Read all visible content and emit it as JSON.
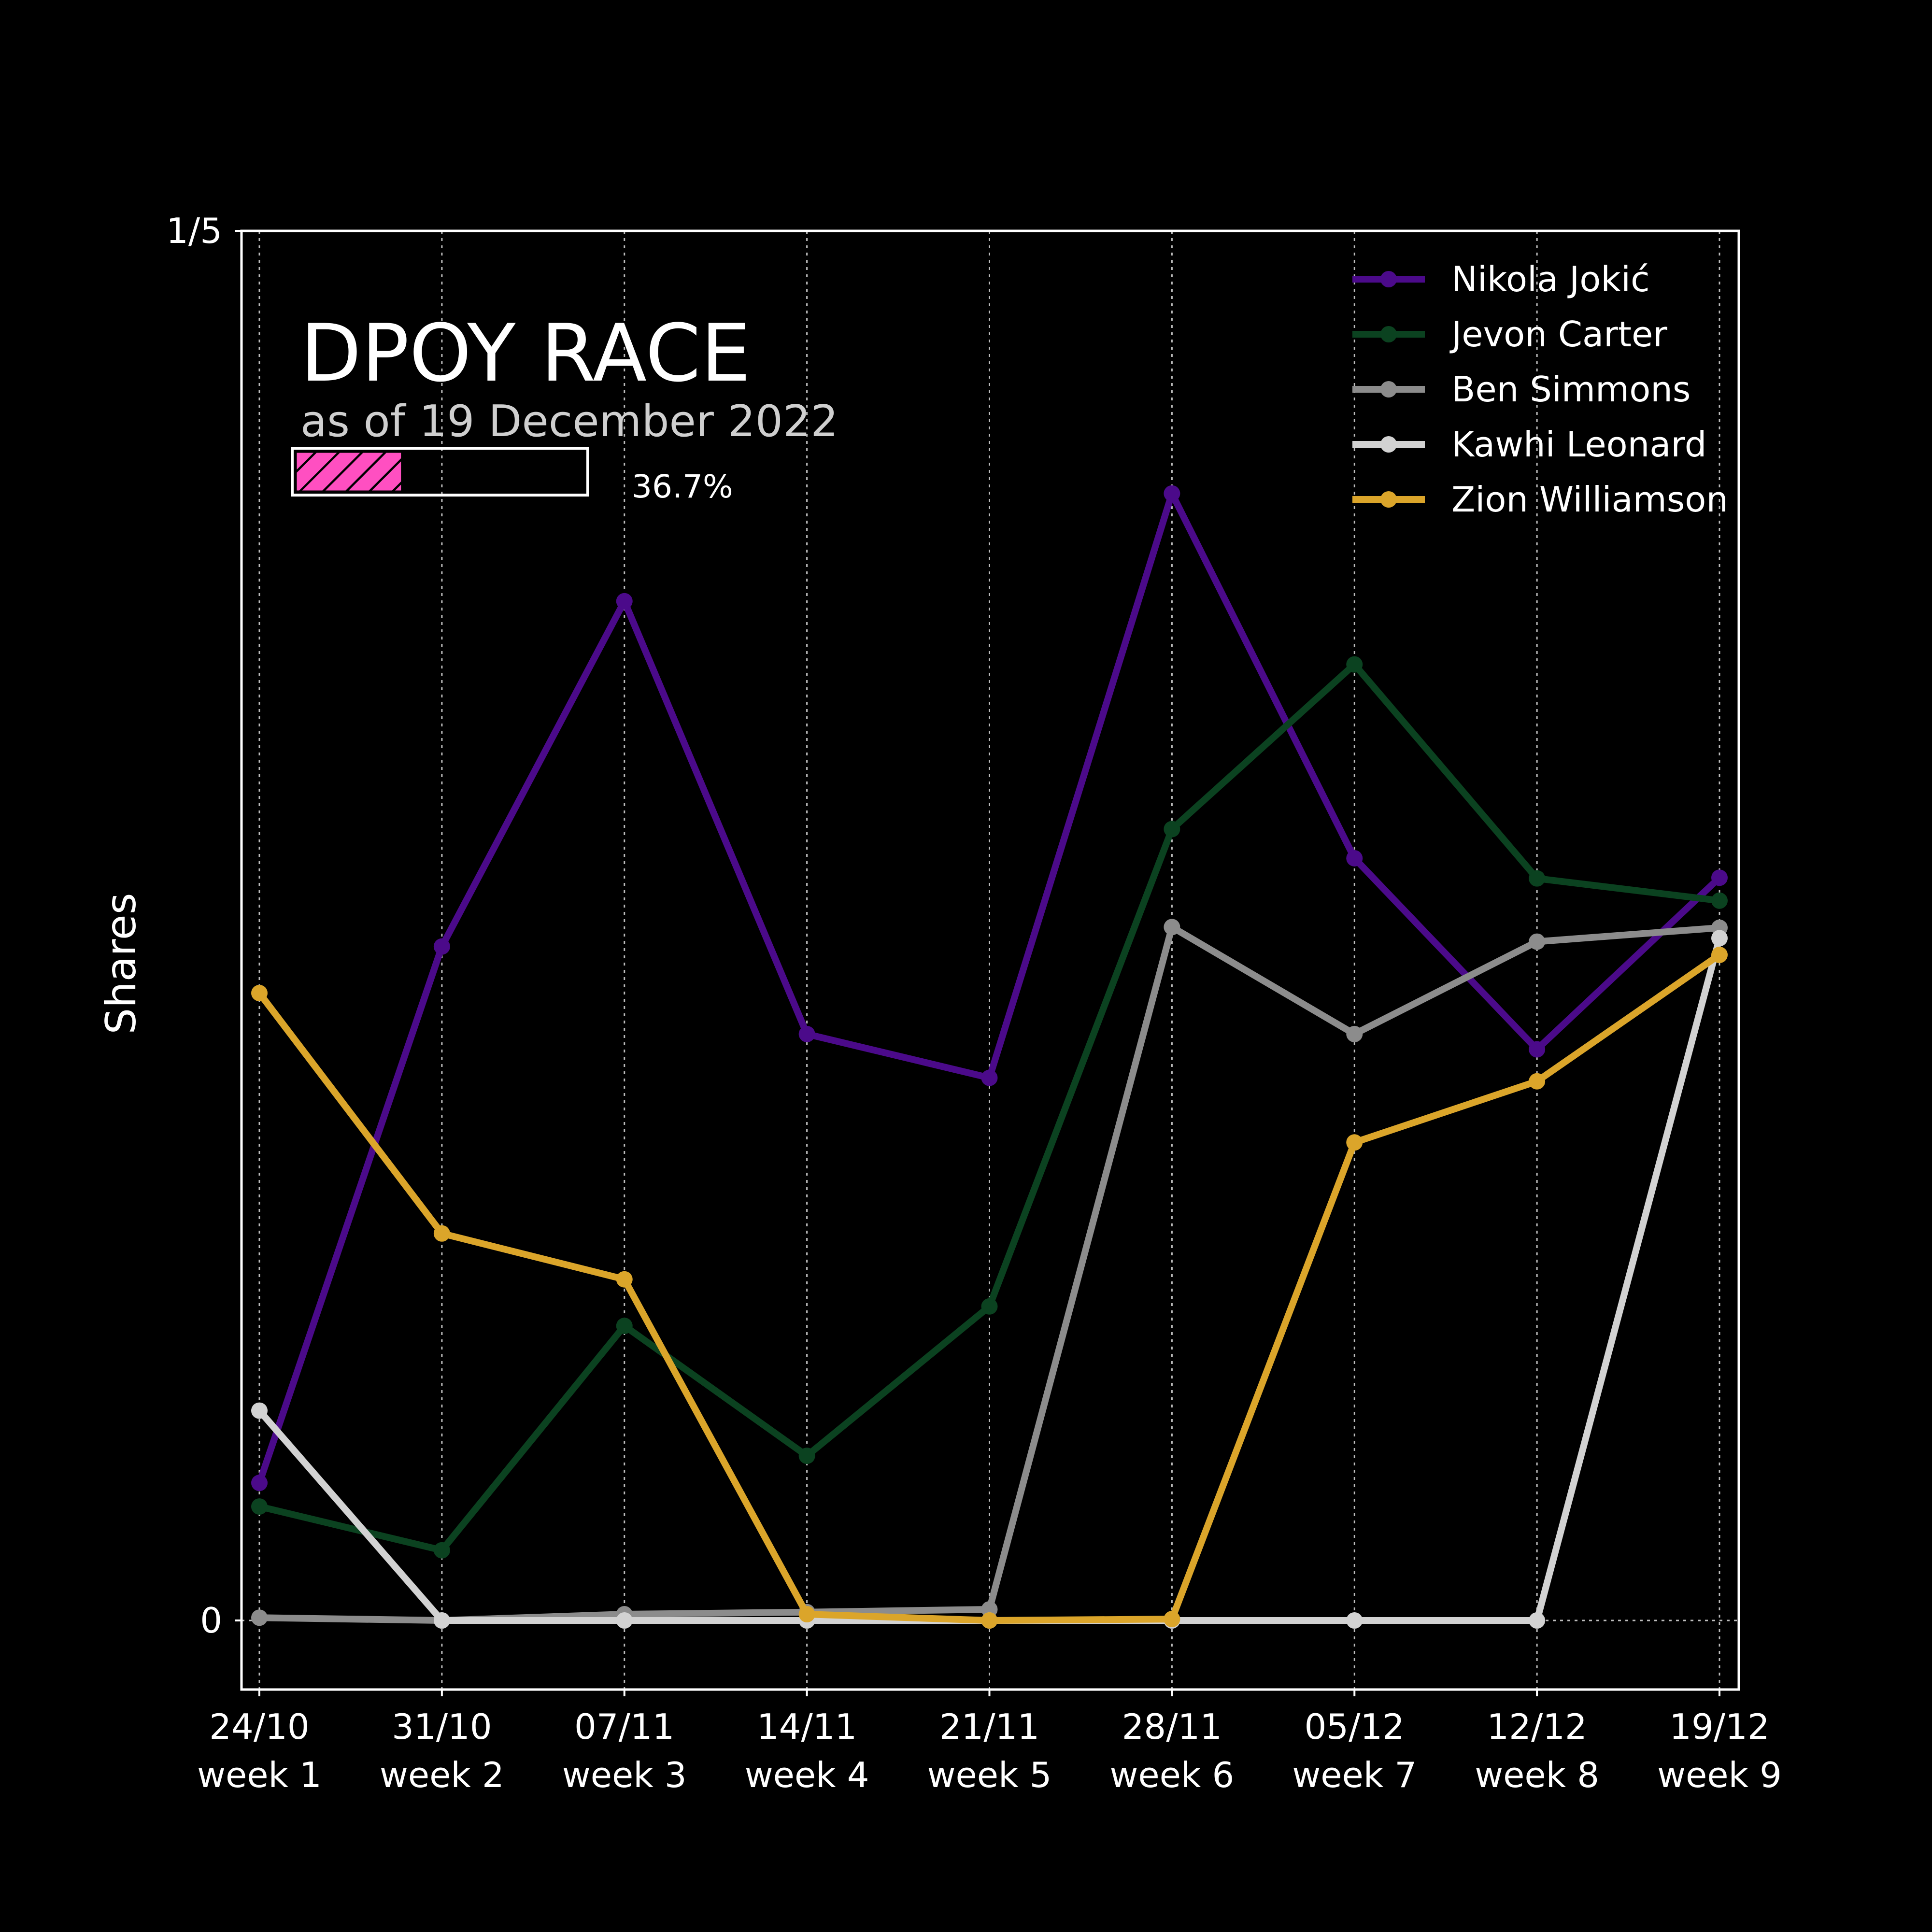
{
  "chart_data": {
    "type": "line",
    "title": "DPOY RACE",
    "subtitle": "as of 19 December 2022",
    "ylabel": "Shares",
    "xlabel": "",
    "ylim": [
      -0.01,
      0.2
    ],
    "y_ticks": [
      {
        "value": 0,
        "label": "0"
      },
      {
        "value": 0.2,
        "label": "1/5"
      }
    ],
    "categories": [
      {
        "date": "24/10",
        "week": "week 1"
      },
      {
        "date": "31/10",
        "week": "week 2"
      },
      {
        "date": "07/11",
        "week": "week 3"
      },
      {
        "date": "14/11",
        "week": "week 4"
      },
      {
        "date": "21/11",
        "week": "week 5"
      },
      {
        "date": "28/11",
        "week": "week 6"
      },
      {
        "date": "05/12",
        "week": "week 7"
      },
      {
        "date": "12/12",
        "week": "week 8"
      },
      {
        "date": "19/12",
        "week": "week 9"
      }
    ],
    "grid": {
      "vertical": true,
      "horizontal": false
    },
    "legend_position": "top-right",
    "series": [
      {
        "name": "Nikola Jokić",
        "color": "#4b0a8a",
        "values": [
          0.0198,
          0.097,
          0.1467,
          0.0844,
          0.0781,
          0.1622,
          0.1097,
          0.0822,
          0.1069
        ]
      },
      {
        "name": "Jevon Carter",
        "color": "#0b4220",
        "values": [
          0.0164,
          0.0101,
          0.0424,
          0.0237,
          0.0452,
          0.1139,
          0.1376,
          0.1068,
          0.1036
        ]
      },
      {
        "name": "Ben Simmons",
        "color": "#8c8c8c",
        "values": [
          0.0004,
          0.0,
          0.0009,
          0.0012,
          0.0016,
          0.0998,
          0.0844,
          0.0977,
          0.0997
        ]
      },
      {
        "name": "Kawhi Leonard",
        "color": "#d2d2d2",
        "values": [
          0.0302,
          0.0,
          0.0,
          0.0,
          0.0,
          0.0,
          0.0,
          0.0,
          0.0982
        ]
      },
      {
        "name": "Zion Williamson",
        "color": "#dba52a",
        "values": [
          0.0903,
          0.0557,
          0.0491,
          0.0009,
          0.0,
          0.0002,
          0.0688,
          0.0776,
          0.0958
        ]
      }
    ],
    "progress": {
      "fraction": 0.367,
      "label": "36.7%",
      "fill_color": "#ff4fc1"
    }
  }
}
